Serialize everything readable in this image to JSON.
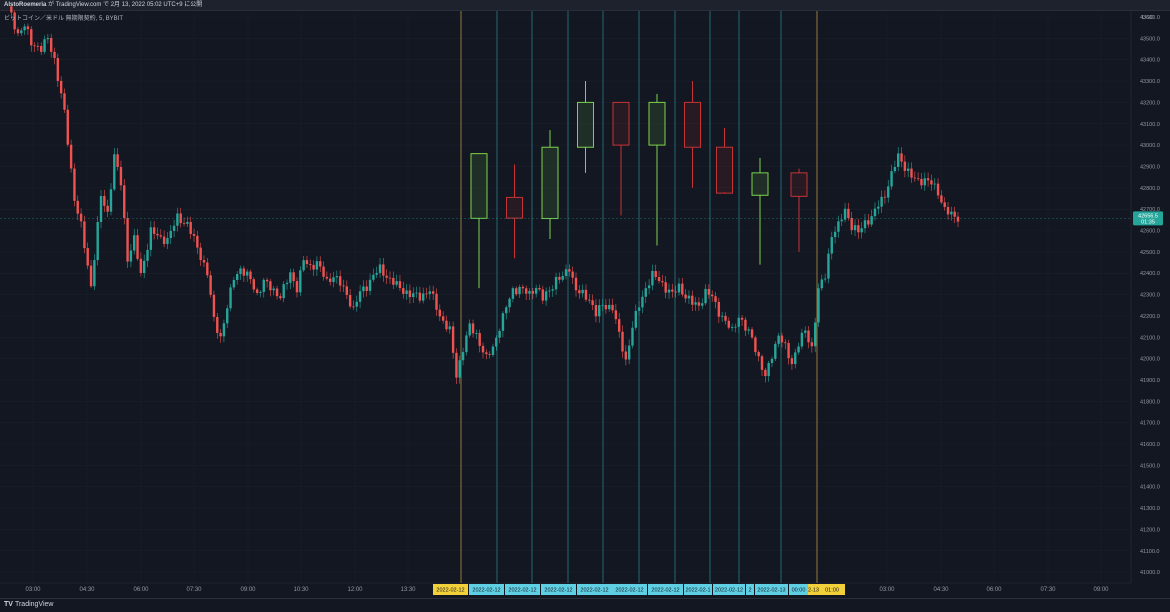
{
  "header": {
    "user": "AlstoRoemeria",
    "publish_text": "が TradingView.com で 2月 13, 2022 05:02 UTC+9 に公開"
  },
  "symbol": {
    "label": "ビットコイン／米ドル 無期限契約, 5, BYBIT"
  },
  "footer": {
    "brand_mark": "TV",
    "brand_name": "TradingView"
  },
  "colors": {
    "background": "#131722",
    "up": "#26a69a",
    "down": "#ef5350",
    "htf_up": "#7cd34a",
    "htf_down": "#c53434",
    "divider_gold": "#b8913f",
    "divider_teal": "#2a7f86",
    "date_gold": "#f2d039",
    "date_cyan": "#5fd0e4",
    "price_tag": "#26a69a"
  },
  "chart_data": {
    "type": "candlestick",
    "currency": "USD",
    "y_axis": {
      "ticks": [
        "43600.0",
        "43500.0",
        "43400.0",
        "43300.0",
        "43200.0",
        "43100.0",
        "43000.0",
        "42900.0",
        "42800.0",
        "42700.0",
        "42600.0",
        "42500.0",
        "42400.0",
        "42300.0",
        "42200.0",
        "42100.0",
        "42000.0",
        "41900.0",
        "41800.0",
        "41700.0",
        "41600.0",
        "41500.0",
        "41400.0",
        "41300.0",
        "41200.0",
        "41100.0",
        "41000.0"
      ],
      "range": [
        41000,
        43650
      ]
    },
    "x_axis": {
      "ticks": [
        "03:00",
        "04:30",
        "06:00",
        "07:30",
        "09:00",
        "10:30",
        "12:00",
        "13:30",
        "03:00",
        "04:30",
        "06:00",
        "07:30",
        "09:00"
      ]
    },
    "last_price": {
      "value": "42656.5",
      "countdown": "01:35",
      "price": 42656.5
    },
    "date_labels": [
      "2022-02-12",
      "2022-02-12",
      "2022-02-12",
      "2022-02-12",
      "2022-02-12",
      "2022-02-12",
      "2022-02-12",
      "2022-02-1",
      "2022-02-12",
      "2022-02-12",
      "2",
      "2022-02-13",
      "00:00",
      "2-13",
      "01:00"
    ],
    "price_path": [
      [
        43650,
        0
      ],
      [
        43520,
        3
      ],
      [
        43560,
        5
      ],
      [
        43480,
        7
      ],
      [
        43450,
        10
      ],
      [
        43500,
        12
      ],
      [
        43400,
        14
      ],
      [
        43150,
        17
      ],
      [
        42750,
        20
      ],
      [
        42620,
        22
      ],
      [
        42340,
        25
      ],
      [
        42760,
        28
      ],
      [
        42680,
        30
      ],
      [
        42950,
        32
      ],
      [
        42820,
        34
      ],
      [
        42470,
        36
      ],
      [
        42560,
        38
      ],
      [
        42390,
        40
      ],
      [
        42600,
        43
      ],
      [
        42560,
        46
      ],
      [
        42560,
        48
      ],
      [
        42660,
        51
      ],
      [
        42630,
        54
      ],
      [
        42520,
        57
      ],
      [
        42400,
        60
      ],
      [
        42180,
        62
      ],
      [
        42100,
        64
      ],
      [
        42240,
        66
      ],
      [
        42380,
        68
      ],
      [
        42420,
        70
      ],
      [
        42370,
        73
      ],
      [
        42300,
        75
      ],
      [
        42360,
        77
      ],
      [
        42320,
        80
      ],
      [
        42290,
        82
      ],
      [
        42400,
        85
      ],
      [
        42330,
        87
      ],
      [
        42460,
        89
      ],
      [
        42430,
        91
      ],
      [
        42450,
        93
      ],
      [
        42360,
        96
      ],
      [
        42390,
        98
      ],
      [
        42350,
        100
      ],
      [
        42300,
        102
      ],
      [
        42230,
        104
      ],
      [
        42310,
        106
      ],
      [
        42340,
        108
      ],
      [
        42390,
        110
      ],
      [
        42420,
        112
      ],
      [
        42370,
        115
      ],
      [
        42330,
        118
      ],
      [
        42300,
        121
      ],
      [
        42290,
        124
      ],
      [
        42320,
        127
      ],
      [
        42200,
        130
      ],
      [
        42130,
        133
      ],
      [
        41920,
        135
      ],
      [
        42050,
        137
      ],
      [
        42150,
        139
      ],
      [
        42110,
        141
      ],
      [
        42000,
        144
      ],
      [
        42050,
        146
      ],
      [
        42150,
        148
      ],
      [
        42240,
        150
      ],
      [
        42320,
        152
      ],
      [
        42330,
        154
      ],
      [
        42300,
        157
      ],
      [
        42340,
        159
      ],
      [
        42280,
        161
      ],
      [
        42320,
        163
      ],
      [
        42370,
        165
      ],
      [
        42380,
        167
      ],
      [
        42430,
        169
      ],
      [
        42320,
        171
      ],
      [
        42300,
        173
      ],
      [
        42280,
        175
      ],
      [
        42210,
        177
      ],
      [
        42250,
        179
      ],
      [
        42240,
        182
      ],
      [
        42110,
        184
      ],
      [
        41990,
        186
      ],
      [
        42150,
        188
      ],
      [
        42250,
        190
      ],
      [
        42330,
        192
      ],
      [
        42390,
        194
      ],
      [
        42370,
        196
      ],
      [
        42330,
        198
      ],
      [
        42300,
        200
      ],
      [
        42340,
        202
      ],
      [
        42290,
        204
      ],
      [
        42260,
        206
      ],
      [
        42250,
        208
      ],
      [
        42310,
        210
      ],
      [
        42290,
        212
      ],
      [
        42220,
        214
      ],
      [
        42170,
        216
      ],
      [
        42130,
        218
      ],
      [
        42200,
        220
      ],
      [
        42140,
        222
      ],
      [
        42100,
        224
      ],
      [
        42000,
        226
      ],
      [
        41910,
        228
      ],
      [
        42020,
        230
      ],
      [
        42110,
        232
      ],
      [
        42050,
        234
      ],
      [
        41980,
        236
      ],
      [
        42070,
        238
      ],
      [
        42130,
        240
      ],
      [
        42050,
        242
      ],
      [
        42320,
        244
      ],
      [
        42390,
        246
      ],
      [
        42580,
        248
      ],
      [
        42620,
        250
      ],
      [
        42700,
        252
      ],
      [
        42620,
        254
      ],
      [
        42590,
        256
      ],
      [
        42640,
        258
      ],
      [
        42660,
        260
      ],
      [
        42720,
        262
      ],
      [
        42770,
        264
      ],
      [
        42860,
        266
      ],
      [
        42950,
        268
      ],
      [
        42900,
        270
      ],
      [
        42850,
        272
      ],
      [
        42830,
        274
      ],
      [
        42840,
        276
      ],
      [
        42820,
        278
      ],
      [
        42780,
        280
      ],
      [
        42700,
        282
      ],
      [
        42670,
        284
      ],
      [
        42660,
        286
      ]
    ],
    "htf_candles": [
      {
        "o": 42657,
        "h": 42960,
        "l": 42330,
        "c": 42960
      },
      {
        "o": 42755,
        "h": 42910,
        "l": 42470,
        "c": 42658
      },
      {
        "o": 42656,
        "h": 43070,
        "l": 42560,
        "c": 42990
      },
      {
        "o": 42990,
        "h": 43300,
        "l": 42870,
        "c": 43200
      },
      {
        "o": 43200,
        "h": 43200,
        "l": 42670,
        "c": 43000
      },
      {
        "o": 43000,
        "h": 43240,
        "l": 42530,
        "c": 43200
      },
      {
        "o": 43200,
        "h": 43300,
        "l": 42800,
        "c": 42990
      },
      {
        "o": 42990,
        "h": 43080,
        "l": 42780,
        "c": 42775
      },
      {
        "o": 42765,
        "h": 42940,
        "l": 42440,
        "c": 42870
      },
      {
        "o": 42870,
        "h": 42890,
        "l": 42500,
        "c": 42760
      }
    ]
  }
}
